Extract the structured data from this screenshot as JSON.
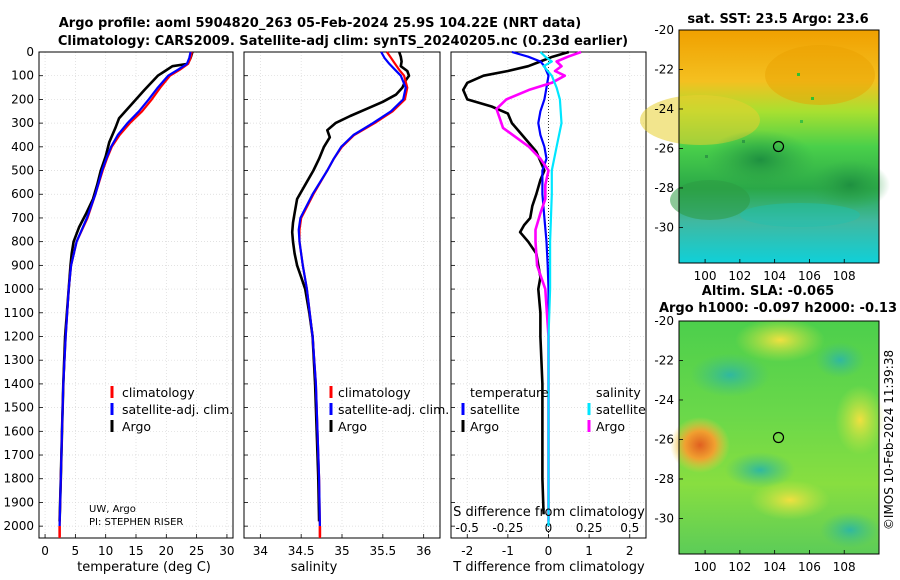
{
  "header": {
    "title_line1": "Argo profile: aoml 5904820_263 05-Feb-2024 25.9S 104.22E (NRT data)",
    "title_line2": "Climatology: CARS2009. Satellite-adj clim: synTS_20240205.nc (0.23d earlier)"
  },
  "colors": {
    "climatology": "#ff0000",
    "satellite": "#0000ff",
    "argo": "#000000",
    "s_satellite": "#00e6ff",
    "s_argo": "#ff00ff"
  },
  "chart_data": [
    {
      "type": "line",
      "name": "temperature",
      "xlabel": "temperature (deg C)",
      "xlim": [
        -1,
        31
      ],
      "xticks": [
        "0",
        "5",
        "10",
        "15",
        "20",
        "25",
        "30"
      ],
      "ylim": [
        2050,
        0
      ],
      "yticks": [
        "0",
        "100",
        "200",
        "300",
        "400",
        "500",
        "600",
        "700",
        "800",
        "900",
        "1000",
        "1100",
        "1200",
        "1300",
        "1400",
        "1500",
        "1600",
        "1700",
        "1800",
        "1900",
        "2000"
      ],
      "legend": [
        "climatology",
        "satellite-adj. clim.",
        "Argo"
      ],
      "note1": "UW, Argo",
      "note2": "PI: STEPHEN RISER",
      "series": [
        {
          "name": "climatology",
          "depth": [
            0,
            25,
            50,
            75,
            100,
            150,
            200,
            250,
            300,
            350,
            400,
            450,
            500,
            600,
            700,
            800,
            900,
            1000,
            1200,
            1400,
            1600,
            1800,
            2000,
            2050
          ],
          "values": [
            24.2,
            24.0,
            23.6,
            22.2,
            20.6,
            19.0,
            17.6,
            16.0,
            14.0,
            12.3,
            11.0,
            10.2,
            9.5,
            8.3,
            7.0,
            5.2,
            4.3,
            3.9,
            3.4,
            3.0,
            2.8,
            2.6,
            2.4,
            2.4
          ]
        },
        {
          "name": "satellite-adj. clim.",
          "depth": [
            0,
            25,
            50,
            75,
            100,
            150,
            200,
            250,
            300,
            350,
            400,
            450,
            500,
            600,
            700,
            800,
            900,
            1000,
            1200,
            1400,
            1600,
            1800,
            2000
          ],
          "values": [
            24.0,
            23.8,
            23.4,
            21.9,
            20.3,
            18.6,
            17.1,
            15.5,
            13.6,
            12.0,
            10.9,
            10.1,
            9.4,
            8.3,
            6.9,
            5.2,
            4.3,
            3.9,
            3.4,
            3.0,
            2.8,
            2.6,
            2.4
          ]
        },
        {
          "name": "Argo",
          "depth": [
            0,
            25,
            50,
            60,
            80,
            100,
            130,
            160,
            200,
            240,
            280,
            320,
            380,
            440,
            500,
            560,
            620,
            680,
            740,
            800,
            850,
            900,
            1000,
            1100,
            1200,
            1400,
            1600,
            1800,
            1980
          ],
          "values": [
            24.3,
            24.0,
            23.5,
            21.0,
            19.8,
            18.6,
            17.5,
            16.4,
            15.0,
            13.6,
            12.2,
            11.6,
            10.6,
            10.0,
            9.2,
            8.6,
            7.9,
            6.8,
            5.6,
            4.7,
            4.4,
            4.2,
            3.9,
            3.6,
            3.3,
            3.0,
            2.8,
            2.6,
            2.4
          ]
        }
      ]
    },
    {
      "type": "line",
      "name": "salinity",
      "xlabel": "salinity",
      "xlim": [
        33.8,
        36.2
      ],
      "xticks": [
        "34",
        "34.5",
        "35",
        "35.5",
        "36"
      ],
      "ylim": [
        2050,
        0
      ],
      "legend": [
        "climatology",
        "satellite-adj. clim.",
        "Argo"
      ],
      "series": [
        {
          "name": "climatology",
          "depth": [
            0,
            25,
            50,
            75,
            100,
            150,
            200,
            250,
            300,
            350,
            400,
            450,
            500,
            600,
            700,
            750,
            800,
            900,
            1000,
            1200,
            1400,
            1600,
            1800,
            2000,
            2050
          ],
          "values": [
            35.55,
            35.6,
            35.65,
            35.7,
            35.76,
            35.8,
            35.77,
            35.62,
            35.4,
            35.15,
            35.0,
            34.9,
            34.82,
            34.65,
            34.5,
            34.48,
            34.48,
            34.52,
            34.57,
            34.64,
            34.68,
            34.7,
            34.72,
            34.73,
            34.73
          ]
        },
        {
          "name": "satellite-adj. clim.",
          "depth": [
            0,
            25,
            50,
            75,
            100,
            150,
            200,
            250,
            300,
            350,
            400,
            450,
            500,
            600,
            700,
            750,
            800,
            900,
            1000,
            1200,
            1400,
            1600,
            1800,
            2000
          ],
          "values": [
            35.48,
            35.52,
            35.58,
            35.65,
            35.72,
            35.78,
            35.75,
            35.6,
            35.38,
            35.14,
            34.99,
            34.9,
            34.82,
            34.64,
            34.49,
            34.47,
            34.48,
            34.52,
            34.57,
            34.64,
            34.68,
            34.7,
            34.72,
            34.73
          ]
        },
        {
          "name": "Argo",
          "depth": [
            0,
            20,
            40,
            60,
            80,
            100,
            120,
            150,
            180,
            210,
            240,
            270,
            300,
            330,
            360,
            400,
            450,
            500,
            560,
            620,
            680,
            720,
            760,
            800,
            850,
            900,
            950,
            1000,
            1100,
            1200,
            1400,
            1600,
            1800,
            1980
          ],
          "values": [
            35.7,
            35.72,
            35.73,
            35.72,
            35.8,
            35.82,
            35.78,
            35.74,
            35.66,
            35.5,
            35.3,
            35.1,
            34.92,
            34.82,
            34.85,
            34.78,
            34.72,
            34.65,
            34.55,
            34.45,
            34.42,
            34.4,
            34.39,
            34.4,
            34.42,
            34.45,
            34.5,
            34.55,
            34.6,
            34.64,
            34.67,
            34.69,
            34.71,
            34.72
          ]
        }
      ]
    },
    {
      "type": "line",
      "name": "difference from climatology",
      "xlabel": "T difference from climatology",
      "xlabel_top": "S difference from climatology",
      "xlim": [
        -2.4,
        2.4
      ],
      "xticks": [
        "-2",
        "-1",
        "0",
        "1",
        "2"
      ],
      "xticks_top": [
        "-0.5",
        "-0.25",
        "0",
        "0.25",
        "0.5"
      ],
      "s_scale": 4,
      "ylim": [
        2050,
        0
      ],
      "legend_t_title": "temperature",
      "legend_s_title": "salinity",
      "legend_entries": [
        "satellite",
        "Argo"
      ],
      "series": [
        {
          "name": "T satellite",
          "kind": "T",
          "depth": [
            0,
            20,
            40,
            60,
            100,
            150,
            200,
            250,
            300,
            350,
            400,
            450,
            500,
            600,
            700,
            800,
            900,
            1000,
            1200,
            1400,
            1600,
            1800,
            2000
          ],
          "values": [
            -0.9,
            -0.5,
            -0.2,
            -0.1,
            0.0,
            -0.05,
            -0.1,
            -0.2,
            -0.25,
            -0.2,
            -0.1,
            -0.05,
            -0.15,
            -0.15,
            -0.1,
            -0.05,
            -0.02,
            0.0,
            0.0,
            0.0,
            0.0,
            0.0,
            0.0
          ]
        },
        {
          "name": "T Argo",
          "kind": "T",
          "depth": [
            0,
            20,
            40,
            60,
            80,
            100,
            130,
            160,
            200,
            230,
            260,
            300,
            340,
            380,
            420,
            460,
            500,
            540,
            600,
            650,
            700,
            730,
            760,
            800,
            850,
            900,
            950,
            1000,
            1100,
            1200,
            1400,
            1600,
            1800,
            1950
          ],
          "values": [
            0.5,
            0.1,
            -0.2,
            -0.5,
            -1.0,
            -1.6,
            -2.0,
            -2.1,
            -2.0,
            -1.4,
            -1.0,
            -0.9,
            -0.7,
            -0.5,
            -0.3,
            -0.2,
            -0.1,
            -0.2,
            -0.3,
            -0.4,
            -0.45,
            -0.6,
            -0.7,
            -0.5,
            -0.3,
            -0.25,
            -0.2,
            -0.25,
            -0.2,
            -0.2,
            -0.15,
            -0.15,
            -0.15,
            -0.12
          ]
        },
        {
          "name": "S satellite",
          "kind": "S",
          "depth": [
            0,
            20,
            40,
            60,
            100,
            150,
            200,
            300,
            400,
            500,
            600,
            800,
            1000,
            1200,
            1400,
            1600,
            1800,
            2000
          ],
          "values": [
            -0.05,
            -0.02,
            0.02,
            -0.03,
            0.02,
            0.05,
            0.07,
            0.08,
            0.05,
            0.02,
            0.02,
            0.01,
            0.01,
            0.0,
            0.0,
            0.0,
            0.0,
            0.0
          ]
        },
        {
          "name": "S Argo",
          "kind": "S",
          "depth": [
            0,
            20,
            40,
            60,
            80,
            100,
            130,
            160,
            200,
            240,
            280,
            320,
            360,
            400,
            450,
            500,
            560,
            620,
            680,
            750,
            800,
            900,
            1000,
            1100,
            1200,
            1400,
            1600,
            1800,
            1980
          ],
          "values": [
            0.2,
            0.12,
            0.05,
            0.08,
            0.04,
            0.1,
            0.02,
            -0.12,
            -0.26,
            -0.32,
            -0.3,
            -0.28,
            -0.2,
            -0.12,
            -0.05,
            0.0,
            -0.02,
            -0.02,
            -0.05,
            -0.08,
            -0.08,
            -0.07,
            -0.02,
            -0.01,
            0.0,
            0.0,
            0.0,
            0.0,
            0.0
          ]
        }
      ]
    }
  ],
  "maps": {
    "sst_title": "sat. SST: 23.5 Argo: 23.6",
    "sla_title1": "Altim. SLA: -0.065",
    "sla_title2": "Argo h1000: -0.097 h2000: -0.13",
    "lat_ticks": [
      "-20",
      "-22",
      "-24",
      "-26",
      "-28",
      "-30"
    ],
    "lon_ticks": [
      "100",
      "102",
      "104",
      "106",
      "108"
    ],
    "profile_lon": 104.22,
    "profile_lat": -25.9,
    "lon_range": [
      98.5,
      110
    ],
    "lat_range": [
      -31.8,
      -20
    ]
  },
  "footer": {
    "timestamp": "©IMOS 10-Feb-2024 11:39:38"
  }
}
